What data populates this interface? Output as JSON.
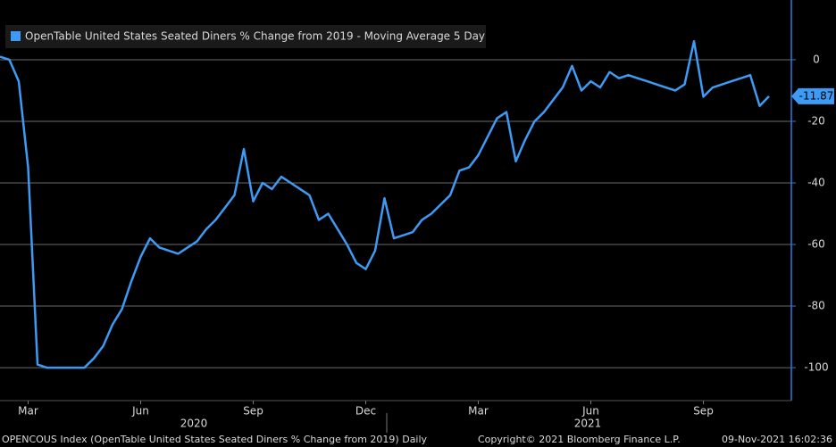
{
  "chart_data": {
    "type": "line",
    "legend": "OpenTable United States Seated Diners % Change from 2019 - Moving Average 5 Day",
    "categories": [
      null,
      null,
      null,
      "Mar",
      null,
      null,
      null,
      null,
      null,
      null,
      null,
      null,
      null,
      null,
      null,
      "Jun",
      null,
      null,
      null,
      null,
      null,
      null,
      null,
      null,
      null,
      null,
      null,
      "Sep",
      null,
      null,
      null,
      null,
      null,
      null,
      null,
      null,
      null,
      null,
      null,
      "Dec",
      null,
      null,
      null,
      null,
      null,
      null,
      null,
      null,
      null,
      null,
      null,
      "Mar",
      null,
      null,
      null,
      null,
      null,
      null,
      null,
      null,
      null,
      null,
      null,
      "Jun",
      null,
      null,
      null,
      null,
      null,
      null,
      null,
      null,
      null,
      null,
      null,
      "Sep",
      null,
      null,
      null,
      null,
      null,
      null,
      null
    ],
    "years": [
      "2020",
      "2021"
    ],
    "series": [
      {
        "name": "OpenTable United States Seated Diners % Change from 2019 - Moving Average 5 Day",
        "color": "#3d9bf5",
        "values": [
          1,
          0,
          -7,
          -35,
          -99,
          -100,
          -100,
          -100,
          -100,
          -100,
          -97,
          -93,
          -86,
          -81,
          -72,
          -64,
          -58,
          -61,
          -62,
          -63,
          -61,
          -59,
          -55,
          -52,
          -48,
          -44,
          -29,
          -46,
          -40,
          -42,
          -38,
          -40,
          -42,
          -44,
          -52,
          -50,
          -55,
          -60,
          -66,
          -68,
          -62,
          -45,
          -58,
          -57,
          -56,
          -52,
          -50,
          -47,
          -44,
          -36,
          -35,
          -31,
          -25,
          -19,
          -17,
          -33,
          -26,
          -20,
          -17,
          -13,
          -9,
          -2,
          -10,
          -7,
          -9,
          -4,
          -6,
          -5,
          -6,
          -7,
          -8,
          -9,
          -10,
          -8,
          6,
          -12,
          -9,
          -8,
          -7,
          -6,
          -5,
          -15,
          -11.87
        ]
      }
    ],
    "ylim": [
      -110.7,
      19.4
    ],
    "yticks": [
      0,
      -20,
      -40,
      -60,
      -80,
      -100
    ],
    "grid": true
  },
  "footer": {
    "left": "OPENCOUS Index (OpenTable United States Seated Diners % Change from 2019)  Daily",
    "middle": "Copyright© 2021 Bloomberg Finance L.P.",
    "right": "09-Nov-2021 16:02:36"
  }
}
